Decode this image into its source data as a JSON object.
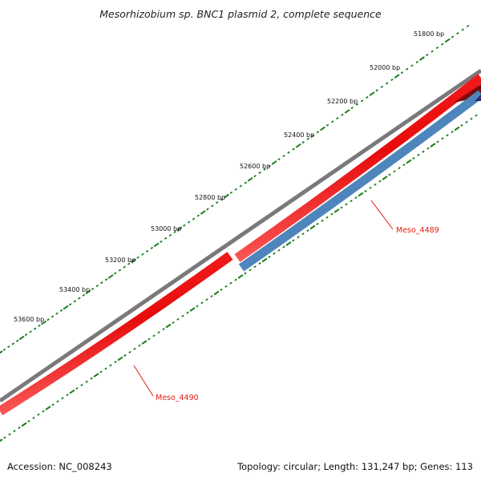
{
  "title": "Mesorhizobium sp. BNC1 plasmid 2, complete sequence",
  "footer": {
    "accession": "Accession: NC_008243",
    "summary": "Topology: circular; Length: 131,247 bp; Genes: 113"
  },
  "scale_labels": [
    "51800 bp",
    "52000 bp",
    "52200 bp",
    "52400 bp",
    "52600 bp",
    "52800 bp",
    "53000 bp",
    "53200 bp",
    "53400 bp",
    "53600 bp"
  ],
  "genes": [
    {
      "label": "Meso_4489",
      "color": "#e8190f"
    },
    {
      "label": "Meso_4490",
      "color": "#e8190f"
    }
  ],
  "colors": {
    "backbone": "#7d7a7d",
    "forward_strand": "#f01010",
    "reverse_strand": "#4f85bd",
    "ticks": "#1e7d1e",
    "label_text": "#e8190f"
  }
}
